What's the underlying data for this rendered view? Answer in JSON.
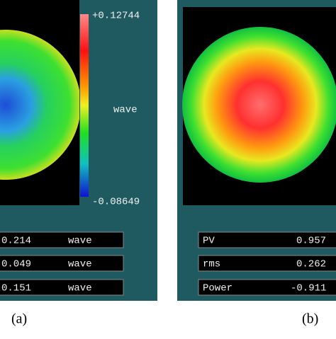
{
  "panels": [
    {
      "colorbar": {
        "max": "+0.12744",
        "unit": "wave",
        "min": "-0.08649"
      },
      "fields": [
        {
          "value": "0.214",
          "unit": "wave"
        },
        {
          "value": "0.049",
          "unit": "wave"
        },
        {
          "value": "0.151",
          "unit": "wave"
        }
      ],
      "caption": "(a)"
    },
    {
      "fields": [
        {
          "label": "PV",
          "value": "0.957"
        },
        {
          "label": "rms",
          "value": "0.262"
        },
        {
          "label": "Power",
          "value": "-0.911"
        }
      ],
      "caption": "(b)"
    }
  ]
}
